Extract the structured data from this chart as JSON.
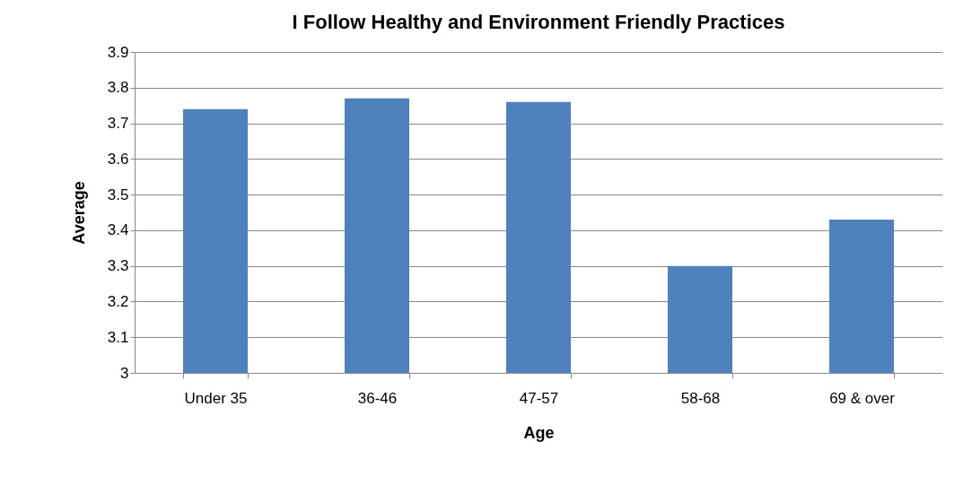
{
  "chart_data": {
    "type": "bar",
    "title": "I Follow Healthy and Environment Friendly Practices",
    "xlabel": "Age",
    "ylabel": "Average",
    "categories": [
      "Under 35",
      "36-46",
      "47-57",
      "58-68",
      "69 & over"
    ],
    "values": [
      3.74,
      3.77,
      3.76,
      3.3,
      3.43
    ],
    "color": "#4f81bd",
    "ylim": [
      3,
      3.9
    ],
    "yticks": [
      3,
      3.1,
      3.2,
      3.3,
      3.4,
      3.5,
      3.6,
      3.7,
      3.8,
      3.9
    ],
    "grid": "y"
  }
}
